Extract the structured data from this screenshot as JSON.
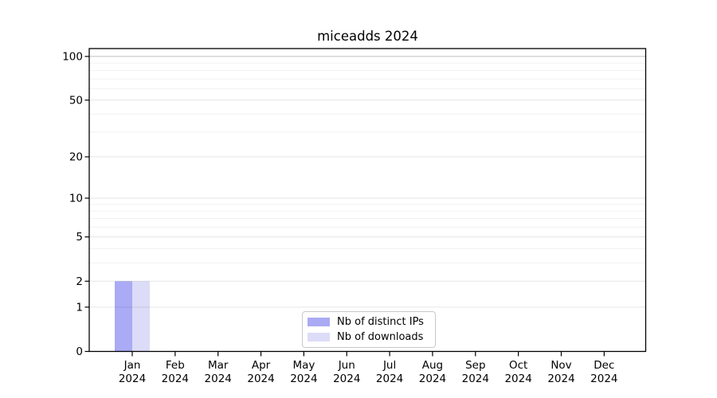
{
  "chart_data": {
    "type": "bar",
    "title": "miceadds 2024",
    "xlabel": "",
    "ylabel": "",
    "categories": [
      "Jan",
      "Feb",
      "Mar",
      "Apr",
      "May",
      "Jun",
      "Jul",
      "Aug",
      "Sep",
      "Oct",
      "Nov",
      "Dec"
    ],
    "category_year_label": "2024",
    "series": [
      {
        "name": "Nb of distinct IPs",
        "color": "#aaaaf5",
        "values": [
          2,
          0,
          0,
          0,
          0,
          0,
          0,
          0,
          0,
          0,
          0,
          0
        ]
      },
      {
        "name": "Nb of downloads",
        "color": "#dcdcf8",
        "values": [
          2,
          0,
          0,
          0,
          0,
          0,
          0,
          0,
          0,
          0,
          0,
          0
        ]
      }
    ],
    "yscale": "log1p",
    "ylim": [
      0,
      113
    ],
    "yticks": [
      0,
      1,
      2,
      5,
      10,
      20,
      50,
      100
    ],
    "minor_gridlines": [
      3,
      4,
      6,
      7,
      8,
      9,
      30,
      40,
      60,
      70,
      80,
      90
    ],
    "grid": "on",
    "legend_position": "lower-center"
  },
  "colors": {
    "background": "#ffffff",
    "spine": "#000000",
    "tick_text": "#000000",
    "gridline_top": "rgba(0,0,0,0.25)",
    "gridline_major": "rgba(0,0,0,0.10)",
    "gridline_minor": "rgba(0,0,0,0.055)",
    "legend_border": "#c9c9c9"
  }
}
